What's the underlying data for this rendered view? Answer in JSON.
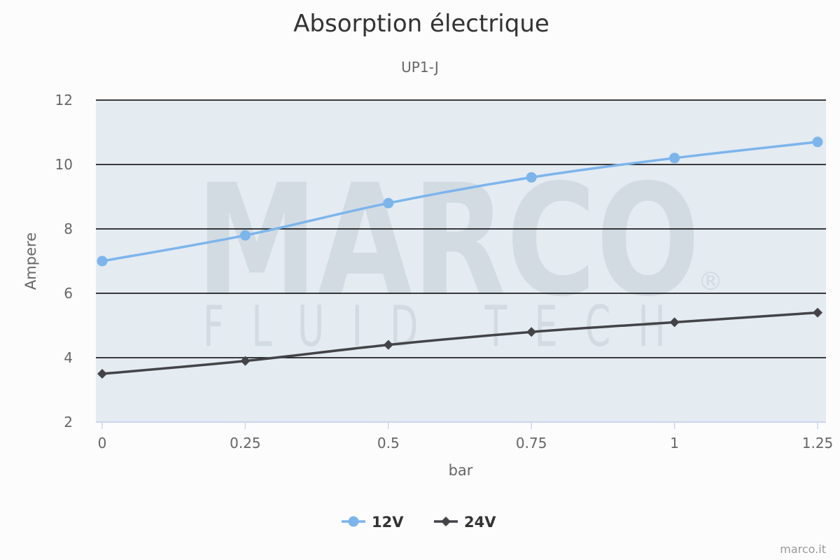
{
  "chart_data": {
    "type": "line",
    "title": "Absorption électrique",
    "subtitle": "UP1-J",
    "xlabel": "bar",
    "ylabel": "Ampere",
    "x": [
      0,
      0.25,
      0.5,
      0.75,
      1,
      1.25
    ],
    "x_tick_labels": [
      "0",
      "0.25",
      "0.5",
      "0.75",
      "1",
      "1.25"
    ],
    "y_ticks": [
      2,
      4,
      6,
      8,
      10,
      12
    ],
    "ylim": [
      2,
      12
    ],
    "xlim": [
      0,
      1.25
    ],
    "grid": true,
    "legend_position": "bottom-center",
    "series": [
      {
        "name": "12V",
        "values": [
          7.0,
          7.8,
          8.8,
          9.6,
          10.2,
          10.7
        ],
        "color": "#7cb5ec",
        "marker": "circle"
      },
      {
        "name": "24V",
        "values": [
          3.5,
          3.9,
          4.4,
          4.8,
          5.1,
          5.4
        ],
        "color": "#434348",
        "marker": "diamond"
      }
    ]
  },
  "watermark": {
    "brand": "MARCO",
    "tagline": "FLUID TECH",
    "registered": "®"
  },
  "credit": "marco.it",
  "colors": {
    "plot_background": "#e4ebf1",
    "grid": "#000000",
    "axis_line": "#ccd6eb"
  }
}
